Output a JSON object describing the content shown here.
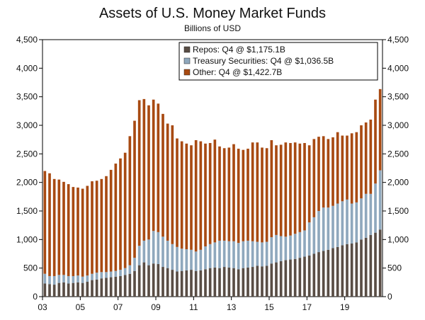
{
  "chart_data": {
    "type": "bar",
    "stacked": true,
    "title": "Assets of U.S. Money Market Funds",
    "subtitle": "Billions of USD",
    "xlabel": "",
    "ylabel": "",
    "ylim": [
      0,
      4500
    ],
    "yticks": [
      "0",
      "500",
      "1,000",
      "1,500",
      "2,000",
      "2,500",
      "3,000",
      "3,500",
      "4,000",
      "4,500"
    ],
    "ytick_values": [
      0,
      500,
      1000,
      1500,
      2000,
      2500,
      3000,
      3500,
      4000,
      4500
    ],
    "xtick_labels": [
      "03",
      "05",
      "07",
      "09",
      "11",
      "13",
      "15",
      "17",
      "19"
    ],
    "xtick_years": [
      2003,
      2005,
      2007,
      2009,
      2011,
      2013,
      2015,
      2017,
      2019
    ],
    "start_year": 2003,
    "quarters_per_year": 4,
    "legend_position": "top-right",
    "grid": false,
    "colors": {
      "Repos": "#594d45",
      "Treasury Securities": "#8fa8bd",
      "Other": "#a84a12"
    },
    "legend": [
      "Repos: Q4 @ $1,175.1B",
      "Treasury Securities: Q4 @ $1,036.5B",
      "Other: Q4 @ $1,422.7B"
    ],
    "series": [
      {
        "name": "Repos",
        "values": [
          230,
          220,
          210,
          240,
          250,
          230,
          240,
          250,
          240,
          260,
          290,
          300,
          320,
          330,
          340,
          350,
          360,
          380,
          400,
          450,
          550,
          600,
          550,
          580,
          570,
          520,
          500,
          470,
          440,
          450,
          460,
          470,
          450,
          460,
          480,
          500,
          510,
          500,
          520,
          510,
          500,
          480,
          500,
          510,
          520,
          540,
          530,
          540,
          580,
          600,
          620,
          640,
          650,
          660,
          680,
          700,
          720,
          750,
          780,
          800,
          820,
          850,
          870,
          900,
          920,
          930,
          950,
          1000,
          1030,
          1080,
          1120,
          1175.1
        ]
      },
      {
        "name": "Treasury Securities",
        "values": [
          170,
          140,
          150,
          140,
          130,
          130,
          120,
          120,
          110,
          110,
          110,
          120,
          110,
          100,
          100,
          100,
          110,
          120,
          150,
          230,
          340,
          380,
          450,
          570,
          560,
          530,
          480,
          450,
          430,
          390,
          370,
          350,
          340,
          360,
          400,
          420,
          440,
          480,
          460,
          460,
          470,
          460,
          470,
          470,
          450,
          420,
          420,
          420,
          460,
          480,
          440,
          410,
          420,
          440,
          450,
          460,
          580,
          640,
          720,
          760,
          740,
          740,
          760,
          770,
          780,
          700,
          700,
          720,
          770,
          720,
          860,
          1036.5
        ]
      },
      {
        "name": "Other",
        "values": [
          1800,
          1800,
          1700,
          1670,
          1630,
          1610,
          1560,
          1540,
          1540,
          1570,
          1620,
          1610,
          1630,
          1680,
          1780,
          1880,
          1950,
          2020,
          2260,
          2400,
          2550,
          2480,
          2350,
          2300,
          2250,
          2150,
          2050,
          2080,
          1900,
          1880,
          1850,
          1830,
          1950,
          1900,
          1800,
          1770,
          1800,
          1650,
          1620,
          1640,
          1700,
          1650,
          1600,
          1610,
          1730,
          1740,
          1660,
          1640,
          1700,
          1570,
          1600,
          1650,
          1620,
          1600,
          1550,
          1530,
          1350,
          1370,
          1300,
          1250,
          1200,
          1200,
          1250,
          1150,
          1120,
          1230,
          1230,
          1280,
          1250,
          1300,
          1470,
          1422.7
        ]
      }
    ]
  }
}
